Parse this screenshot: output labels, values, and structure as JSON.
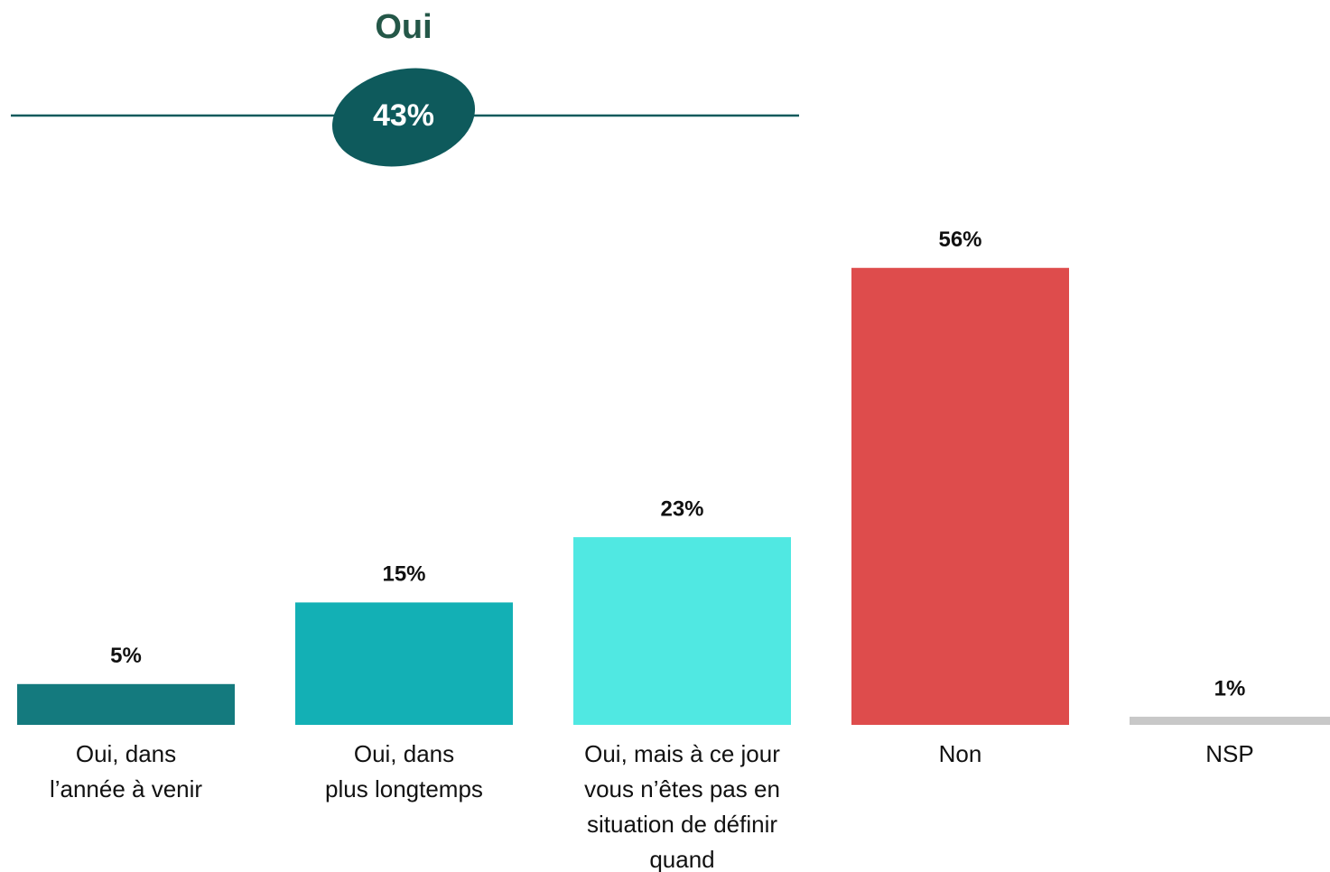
{
  "chart_data": {
    "type": "bar",
    "annotation": {
      "label": "Oui",
      "value": 43,
      "value_label": "43%"
    },
    "categories": [
      "Oui, dans\nl’année à venir",
      "Oui, dans\nplus longtemps",
      "Oui, mais à ce jour\nvous n’êtes pas en\nsituation de définir\nquand",
      "Non",
      "NSP"
    ],
    "values": [
      5,
      15,
      23,
      56,
      1
    ],
    "value_labels": [
      "5%",
      "15%",
      "23%",
      "56%",
      "1%"
    ],
    "colors": [
      "#147a7e",
      "#13b0b5",
      "#50e8e2",
      "#de4c4c",
      "#c8c8c8"
    ]
  }
}
